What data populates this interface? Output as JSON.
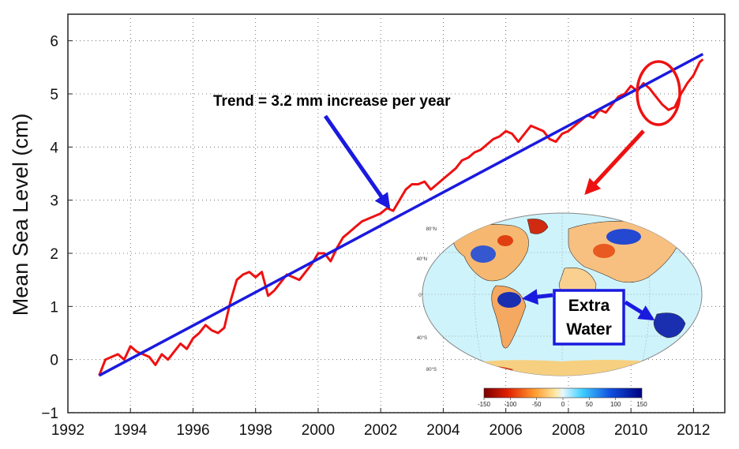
{
  "chart_data": {
    "type": "line",
    "title": "",
    "xlabel": "",
    "ylabel": "Mean Sea Level (cm)",
    "xlim": [
      1992,
      2013
    ],
    "ylim": [
      -1,
      6.5
    ],
    "xticks": [
      1992,
      1994,
      1996,
      1998,
      2000,
      2002,
      2004,
      2006,
      2008,
      2010,
      2012
    ],
    "yticks": [
      -1,
      0,
      1,
      2,
      3,
      4,
      5,
      6
    ],
    "grid": true,
    "series": [
      {
        "color": "#ee1111",
        "x": [
          1993.0,
          1993.2,
          1993.4,
          1993.6,
          1993.8,
          1994.0,
          1994.2,
          1994.4,
          1994.6,
          1994.8,
          1995.0,
          1995.2,
          1995.4,
          1995.6,
          1995.8,
          1996.0,
          1996.2,
          1996.4,
          1996.6,
          1996.8,
          1997.0,
          1997.2,
          1997.4,
          1997.6,
          1997.8,
          1998.0,
          1998.2,
          1998.4,
          1998.6,
          1998.8,
          1999.0,
          1999.2,
          1999.4,
          1999.6,
          1999.8,
          2000.0,
          2000.2,
          2000.4,
          2000.6,
          2000.8,
          2001.0,
          2001.2,
          2001.4,
          2001.6,
          2001.8,
          2002.0,
          2002.2,
          2002.4,
          2002.6,
          2002.8,
          2003.0,
          2003.2,
          2003.4,
          2003.6,
          2003.8,
          2004.0,
          2004.2,
          2004.4,
          2004.6,
          2004.8,
          2005.0,
          2005.2,
          2005.4,
          2005.6,
          2005.8,
          2006.0,
          2006.2,
          2006.4,
          2006.6,
          2006.8,
          2007.0,
          2007.2,
          2007.4,
          2007.6,
          2007.8,
          2008.0,
          2008.2,
          2008.4,
          2008.6,
          2008.8,
          2009.0,
          2009.2,
          2009.4,
          2009.6,
          2009.8,
          2010.0,
          2010.2,
          2010.4,
          2010.6,
          2010.8,
          2011.0,
          2011.2,
          2011.4,
          2011.6,
          2011.8,
          2012.0,
          2012.2,
          2012.3
        ],
        "values": [
          -0.3,
          0.0,
          0.05,
          0.1,
          0.0,
          0.25,
          0.15,
          0.1,
          0.05,
          -0.1,
          0.1,
          0.0,
          0.15,
          0.3,
          0.2,
          0.4,
          0.5,
          0.65,
          0.55,
          0.5,
          0.6,
          1.1,
          1.5,
          1.6,
          1.65,
          1.55,
          1.65,
          1.2,
          1.3,
          1.45,
          1.6,
          1.55,
          1.5,
          1.65,
          1.8,
          2.0,
          2.0,
          1.85,
          2.1,
          2.3,
          2.4,
          2.5,
          2.6,
          2.65,
          2.7,
          2.75,
          2.85,
          2.8,
          3.0,
          3.2,
          3.3,
          3.3,
          3.35,
          3.2,
          3.3,
          3.4,
          3.5,
          3.6,
          3.75,
          3.8,
          3.9,
          3.95,
          4.05,
          4.15,
          4.2,
          4.3,
          4.25,
          4.1,
          4.25,
          4.4,
          4.35,
          4.3,
          4.15,
          4.1,
          4.25,
          4.3,
          4.4,
          4.5,
          4.6,
          4.55,
          4.7,
          4.65,
          4.8,
          4.95,
          5.0,
          5.15,
          5.05,
          5.2,
          5.1,
          4.95,
          4.8,
          4.7,
          4.75,
          5.0,
          5.2,
          5.35,
          5.6,
          5.65
        ]
      },
      {
        "color": "#1a1adf",
        "x": [
          1993.0,
          2012.3
        ],
        "values": [
          -0.3,
          5.75
        ]
      }
    ],
    "annotations": [
      {
        "text": "Trend = 3.2 mm increase per year"
      },
      {
        "text_lines": [
          "Extra",
          "Water"
        ]
      }
    ],
    "colorbar": {
      "ticks": [
        "-150",
        "-100",
        "-50",
        "0",
        "50",
        "100",
        "150"
      ]
    },
    "map_lat_labels": [
      "80°N",
      "40°N",
      "0°",
      "40°S",
      "80°S"
    ]
  }
}
